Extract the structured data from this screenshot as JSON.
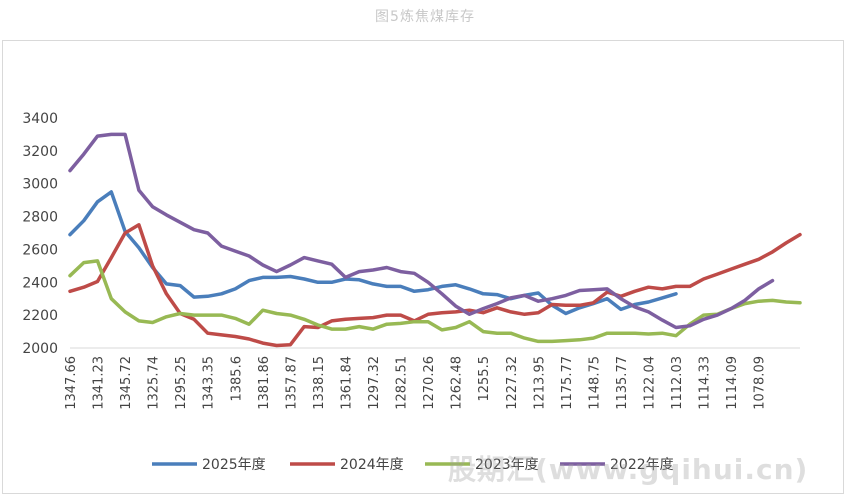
{
  "title": "图5炼焦煤库存",
  "watermark": "股期汇(www.gqihui.cn)",
  "chart_data": {
    "type": "line",
    "ylim": [
      2000,
      3400
    ],
    "yticks": [
      2000,
      2200,
      2400,
      2600,
      2800,
      3000,
      3200,
      3400
    ],
    "x_tick_labels": [
      "1347.66",
      "1341.23",
      "1345.72",
      "1325.74",
      "1295.25",
      "1343.35",
      "1385.6",
      "1381.86",
      "1357.87",
      "1338.15",
      "1361.84",
      "1297.32",
      "1282.51",
      "1270.26",
      "1262.48",
      "1255.5",
      "1227.32",
      "1213.95",
      "1175.77",
      "1148.75",
      "1135.77",
      "1122.04",
      "1112.03",
      "1114.33",
      "1114.09",
      "1078.09"
    ],
    "legend_position": "bottom",
    "grid": false,
    "series": [
      {
        "name": "2025年度",
        "color": "#4a7ebb",
        "values": [
          2690,
          2775,
          2890,
          2950,
          2710,
          2610,
          2490,
          2390,
          2380,
          2310,
          2315,
          2330,
          2360,
          2410,
          2430,
          2430,
          2435,
          2420,
          2400,
          2400,
          2420,
          2415,
          2390,
          2375,
          2375,
          2345,
          2355,
          2375,
          2385,
          2360,
          2330,
          2325,
          2300,
          2320,
          2335,
          2260,
          2210,
          2245,
          2270,
          2300,
          2235,
          2265,
          2280,
          2305,
          2330
        ]
      },
      {
        "name": "2024年度",
        "color": "#be4b48",
        "values": [
          2345,
          2370,
          2405,
          2550,
          2700,
          2750,
          2500,
          2330,
          2210,
          2175,
          2090,
          2080,
          2070,
          2055,
          2030,
          2015,
          2020,
          2130,
          2125,
          2165,
          2175,
          2180,
          2185,
          2200,
          2200,
          2165,
          2205,
          2215,
          2220,
          2230,
          2215,
          2245,
          2220,
          2205,
          2215,
          2265,
          2260,
          2260,
          2275,
          2340,
          2315,
          2345,
          2370,
          2360,
          2375,
          2375,
          2420,
          2450,
          2480,
          2510,
          2540,
          2585,
          2640,
          2690
        ]
      },
      {
        "name": "2023年度",
        "color": "#98b954",
        "values": [
          2440,
          2520,
          2530,
          2300,
          2220,
          2165,
          2155,
          2190,
          2210,
          2200,
          2200,
          2200,
          2180,
          2145,
          2230,
          2210,
          2200,
          2175,
          2140,
          2115,
          2115,
          2130,
          2115,
          2145,
          2150,
          2160,
          2160,
          2110,
          2125,
          2160,
          2100,
          2090,
          2090,
          2060,
          2040,
          2040,
          2045,
          2050,
          2060,
          2090,
          2090,
          2090,
          2085,
          2090,
          2075,
          2145,
          2200,
          2205,
          2240,
          2270,
          2285,
          2290,
          2280,
          2275
        ]
      },
      {
        "name": "2022年度",
        "color": "#7d5fa0",
        "values": [
          3080,
          3180,
          3290,
          3300,
          3300,
          2960,
          2860,
          2810,
          2765,
          2720,
          2700,
          2620,
          2590,
          2560,
          2505,
          2465,
          2505,
          2550,
          2530,
          2510,
          2430,
          2465,
          2475,
          2490,
          2465,
          2455,
          2400,
          2330,
          2255,
          2205,
          2240,
          2270,
          2305,
          2320,
          2285,
          2300,
          2320,
          2350,
          2355,
          2360,
          2300,
          2250,
          2220,
          2170,
          2125,
          2135,
          2175,
          2200,
          2240,
          2290,
          2360,
          2410
        ]
      }
    ]
  }
}
